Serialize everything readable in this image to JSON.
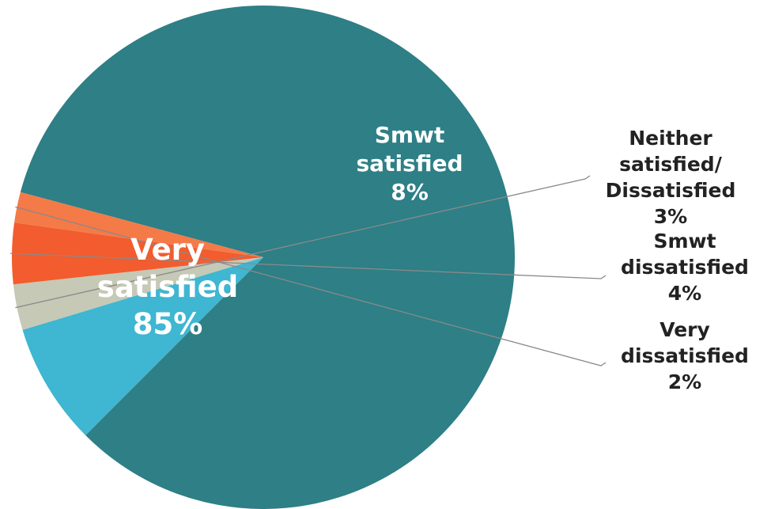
{
  "chart_data": {
    "type": "pie",
    "title": "",
    "start_angle_deg": 285,
    "direction": "clockwise",
    "label_inside": "white",
    "label_outside": "#222222",
    "slices": [
      {
        "label_lines": [
          "Very",
          "satisfied",
          "85%"
        ],
        "value": 85,
        "color": "#2E7F86",
        "label_position": "inside"
      },
      {
        "label_lines": [
          "Smwt",
          "satisfied",
          "8%"
        ],
        "value": 8,
        "color": "#3FB6D2",
        "label_position": "inside"
      },
      {
        "label_lines": [
          "Neither",
          "satisfied/",
          "Dissatisfied",
          "3%"
        ],
        "value": 3,
        "color": "#C5C9B6",
        "label_position": "outside"
      },
      {
        "label_lines": [
          "Smwt",
          "dissatisfied",
          "4%"
        ],
        "value": 4,
        "color": "#F25C2E",
        "label_position": "outside"
      },
      {
        "label_lines": [
          "Very",
          "dissatisfied",
          "2%"
        ],
        "value": 2,
        "color": "#F47A48",
        "label_position": "outside"
      }
    ]
  }
}
